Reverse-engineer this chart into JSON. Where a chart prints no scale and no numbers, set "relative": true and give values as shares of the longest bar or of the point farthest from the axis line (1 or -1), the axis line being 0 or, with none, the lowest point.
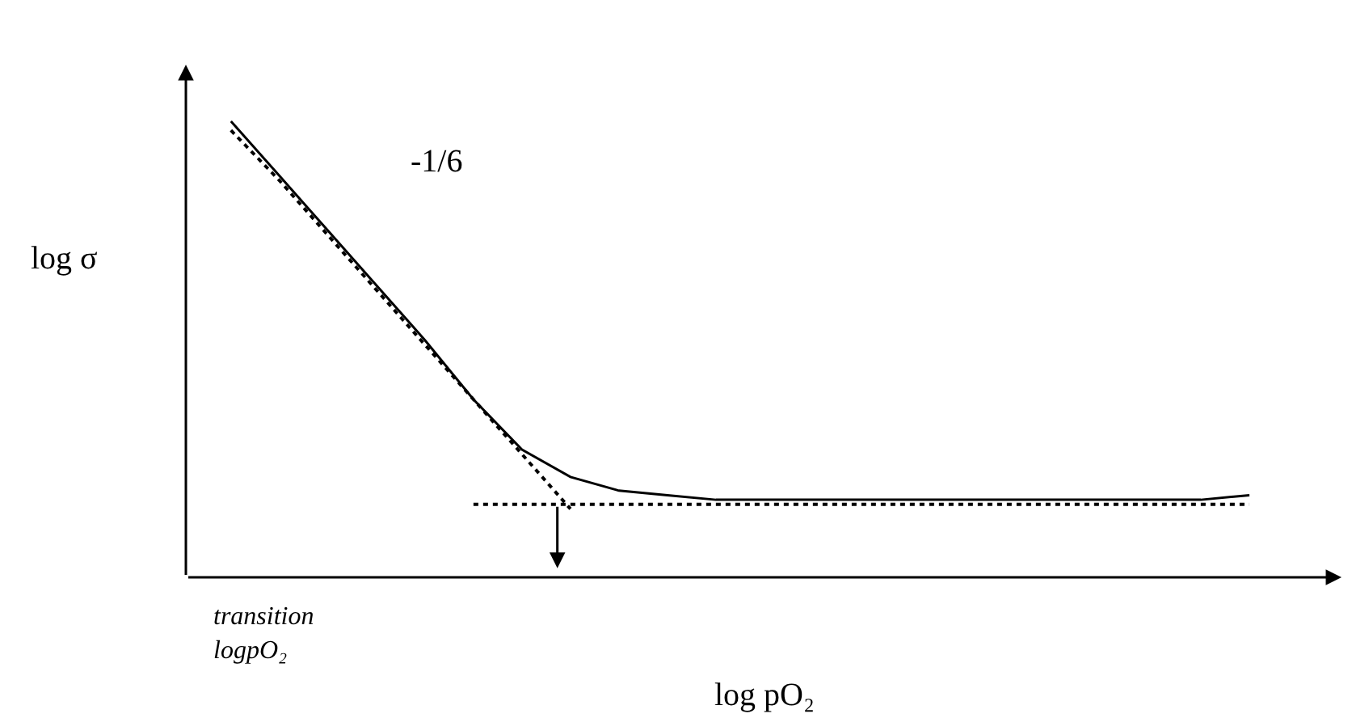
{
  "chart_data": {
    "type": "line",
    "relative": true,
    "xlabel": "log pO₂",
    "ylabel": "log σ",
    "marker": "none",
    "grid": false,
    "categories": [
      null,
      null,
      null,
      null,
      null,
      null,
      null,
      null,
      null,
      null,
      null,
      null,
      null,
      null,
      null,
      null,
      null,
      null,
      null,
      null,
      null,
      null
    ],
    "series": [
      {
        "color": "#000000",
        "line_style": "solid",
        "values": [
          1,
          0.88,
          0.76,
          0.64,
          0.52,
          0.39,
          0.28,
          0.22,
          0.19,
          0.18,
          0.17,
          0.17,
          0.17,
          0.17,
          0.17,
          0.17,
          0.17,
          0.17,
          0.17,
          0.17,
          0.17,
          0.18
        ]
      },
      {
        "color": "#000000",
        "line_style": "dotted",
        "values": [
          0.98,
          0.87,
          0.75,
          0.63,
          0.51,
          0.39,
          0.27,
          0.15,
          null,
          null,
          null,
          null,
          null,
          null,
          null,
          null,
          null,
          null,
          null,
          null,
          null,
          null
        ]
      },
      {
        "color": "#000000",
        "line_style": "dotted",
        "values": [
          null,
          null,
          null,
          null,
          null,
          0.16,
          0.16,
          0.16,
          0.16,
          0.16,
          0.16,
          0.16,
          0.16,
          0.16,
          0.16,
          0.16,
          0.16,
          0.16,
          0.16,
          0.16,
          0.16,
          0.16
        ]
      }
    ],
    "annotations": [
      "-1/6",
      "transition\nlogpO₂"
    ]
  }
}
